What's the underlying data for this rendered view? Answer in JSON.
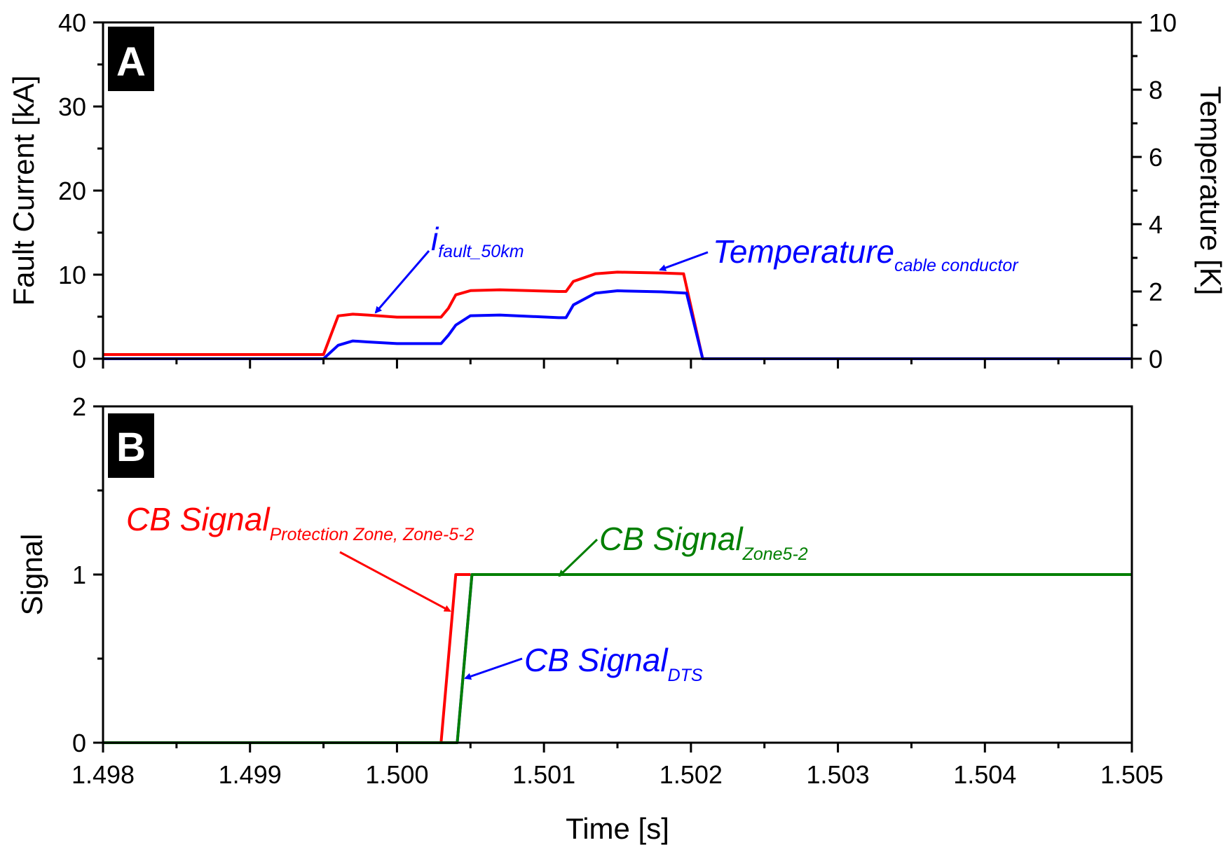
{
  "colors": {
    "red": "#ff0000",
    "blue": "#0000ff",
    "green": "#007f00",
    "frame": "#000000",
    "tag_bg": "#000000",
    "tag_text": "#ffffff"
  },
  "chart_data": [
    {
      "panel": "A",
      "type": "line",
      "xlabel": "Time [s]",
      "ylabel": "Fault Current [kA]",
      "y2label": "Temperature [K]",
      "xlim": [
        1.498,
        1.505
      ],
      "ylim": [
        0,
        40
      ],
      "y2lim": [
        0,
        10
      ],
      "xticks": [
        "1.498",
        "1.499",
        "1.500",
        "1.501",
        "1.502",
        "1.503",
        "1.504",
        "1.505"
      ],
      "yticks": [
        "0",
        "10",
        "20",
        "30",
        "40"
      ],
      "y2ticks": [
        "0",
        "2",
        "4",
        "6",
        "8",
        "10"
      ],
      "grid": false,
      "series": [
        {
          "axis": "left",
          "color": "#ff0000",
          "points": [
            [
              1.498,
              0.5
            ],
            [
              1.4995,
              0.5
            ],
            [
              1.4996,
              5.1
            ],
            [
              1.4997,
              5.3
            ],
            [
              1.4998,
              5.2
            ],
            [
              1.5,
              4.95
            ],
            [
              1.5003,
              4.95
            ],
            [
              1.50035,
              6.0
            ],
            [
              1.5004,
              7.6
            ],
            [
              1.5005,
              8.1
            ],
            [
              1.5007,
              8.2
            ],
            [
              1.5011,
              8.0
            ],
            [
              1.50115,
              8.0
            ],
            [
              1.5012,
              9.2
            ],
            [
              1.50135,
              10.1
            ],
            [
              1.5015,
              10.3
            ],
            [
              1.5018,
              10.2
            ],
            [
              1.50195,
              10.1
            ],
            [
              1.50208,
              0.0
            ],
            [
              1.505,
              0.0
            ]
          ]
        },
        {
          "axis": "right",
          "color": "#0000ff",
          "points": [
            [
              1.498,
              0.0
            ],
            [
              1.4995,
              0.0
            ],
            [
              1.4996,
              0.4
            ],
            [
              1.4997,
              0.53
            ],
            [
              1.4998,
              0.5
            ],
            [
              1.5,
              0.45
            ],
            [
              1.5003,
              0.45
            ],
            [
              1.50035,
              0.7
            ],
            [
              1.5004,
              1.0
            ],
            [
              1.5005,
              1.28
            ],
            [
              1.5007,
              1.3
            ],
            [
              1.5011,
              1.22
            ],
            [
              1.50115,
              1.22
            ],
            [
              1.5012,
              1.6
            ],
            [
              1.50135,
              1.95
            ],
            [
              1.5015,
              2.02
            ],
            [
              1.5018,
              1.99
            ],
            [
              1.50197,
              1.95
            ],
            [
              1.50208,
              0.0
            ],
            [
              1.505,
              0.0
            ]
          ]
        }
      ],
      "panel_label": "A",
      "annotations": [
        {
          "text": "i",
          "sub": "fault_50km",
          "color": "#0000ff"
        },
        {
          "text": "Temperature",
          "sub": "cable conductor",
          "color": "#0000ff"
        }
      ]
    },
    {
      "panel": "B",
      "type": "line",
      "xlabel": "Time [s]",
      "ylabel": "Signal",
      "xlim": [
        1.498,
        1.505
      ],
      "ylim": [
        0,
        2
      ],
      "xticks": [
        "1.498",
        "1.499",
        "1.500",
        "1.501",
        "1.502",
        "1.503",
        "1.504",
        "1.505"
      ],
      "yticks": [
        "0",
        "1",
        "2"
      ],
      "grid": false,
      "series": [
        {
          "color": "#ff0000",
          "points": [
            [
              1.498,
              0
            ],
            [
              1.5003,
              0
            ],
            [
              1.5004,
              1
            ],
            [
              1.5005,
              1
            ]
          ]
        },
        {
          "color": "#0000ff",
          "points": [
            [
              1.498,
              0
            ],
            [
              1.50041,
              0
            ],
            [
              1.50051,
              1
            ],
            [
              1.505,
              1
            ]
          ]
        },
        {
          "color": "#007f00",
          "points": [
            [
              1.498,
              0
            ],
            [
              1.50041,
              0
            ],
            [
              1.50051,
              1
            ],
            [
              1.505,
              1
            ]
          ]
        }
      ],
      "panel_label": "B",
      "annotations": [
        {
          "text": "CB Signal",
          "sub": "Protection Zone, Zone-5-2",
          "color": "#ff0000"
        },
        {
          "text": "CB Signal",
          "sub": "Zone5-2",
          "color": "#007f00"
        },
        {
          "text": "CB Signal",
          "sub": "DTS",
          "color": "#0000ff"
        }
      ]
    }
  ]
}
